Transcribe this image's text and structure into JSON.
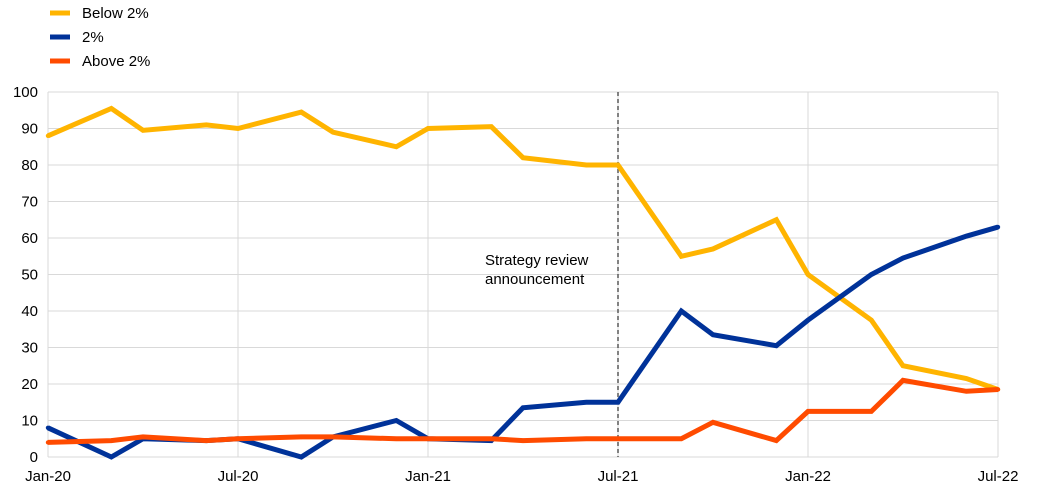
{
  "chart_data": {
    "type": "line",
    "title": "",
    "xlabel": "",
    "ylabel": "",
    "ylim": [
      0,
      100
    ],
    "yticks": [
      0,
      10,
      20,
      30,
      40,
      50,
      60,
      70,
      80,
      90,
      100
    ],
    "xlim": [
      "2020-01",
      "2022-07"
    ],
    "xticks": [
      {
        "label": "Jan-20",
        "x": "2020-01"
      },
      {
        "label": "Jul-20",
        "x": "2020-07"
      },
      {
        "label": "Jan-21",
        "x": "2021-01"
      },
      {
        "label": "Jul-21",
        "x": "2021-07"
      },
      {
        "label": "Jan-22",
        "x": "2022-01"
      },
      {
        "label": "Jul-22",
        "x": "2022-07"
      }
    ],
    "grid": true,
    "legend": "top-left",
    "series": [
      {
        "name": "Below 2%",
        "color": "#FFB400",
        "points": [
          {
            "x": "2020-01",
            "y": 88
          },
          {
            "x": "2020-03",
            "y": 95.5
          },
          {
            "x": "2020-04",
            "y": 89.5
          },
          {
            "x": "2020-06",
            "y": 91
          },
          {
            "x": "2020-07",
            "y": 90
          },
          {
            "x": "2020-09",
            "y": 94.5
          },
          {
            "x": "2020-10",
            "y": 89
          },
          {
            "x": "2020-12",
            "y": 85
          },
          {
            "x": "2021-01",
            "y": 90
          },
          {
            "x": "2021-03",
            "y": 90.5
          },
          {
            "x": "2021-04",
            "y": 82
          },
          {
            "x": "2021-06",
            "y": 80
          },
          {
            "x": "2021-07",
            "y": 80
          },
          {
            "x": "2021-09",
            "y": 55
          },
          {
            "x": "2021-10",
            "y": 57
          },
          {
            "x": "2021-12",
            "y": 65
          },
          {
            "x": "2022-01",
            "y": 50
          },
          {
            "x": "2022-03",
            "y": 37.5
          },
          {
            "x": "2022-04",
            "y": 25
          },
          {
            "x": "2022-06",
            "y": 21.5
          },
          {
            "x": "2022-07",
            "y": 18.5
          }
        ]
      },
      {
        "name": "2%",
        "color": "#003299",
        "points": [
          {
            "x": "2020-01",
            "y": 8
          },
          {
            "x": "2020-03",
            "y": 0
          },
          {
            "x": "2020-04",
            "y": 5
          },
          {
            "x": "2020-06",
            "y": 4.5
          },
          {
            "x": "2020-07",
            "y": 5
          },
          {
            "x": "2020-09",
            "y": 0
          },
          {
            "x": "2020-10",
            "y": 5.5
          },
          {
            "x": "2020-12",
            "y": 10
          },
          {
            "x": "2021-01",
            "y": 5
          },
          {
            "x": "2021-03",
            "y": 4.5
          },
          {
            "x": "2021-04",
            "y": 13.5
          },
          {
            "x": "2021-06",
            "y": 15
          },
          {
            "x": "2021-07",
            "y": 15
          },
          {
            "x": "2021-09",
            "y": 40
          },
          {
            "x": "2021-10",
            "y": 33.5
          },
          {
            "x": "2021-12",
            "y": 30.5
          },
          {
            "x": "2022-01",
            "y": 37.5
          },
          {
            "x": "2022-03",
            "y": 50
          },
          {
            "x": "2022-04",
            "y": 54.5
          },
          {
            "x": "2022-06",
            "y": 60.5
          },
          {
            "x": "2022-07",
            "y": 63
          }
        ]
      },
      {
        "name": "Above 2%",
        "color": "#FF4B00",
        "points": [
          {
            "x": "2020-01",
            "y": 4
          },
          {
            "x": "2020-03",
            "y": 4.5
          },
          {
            "x": "2020-04",
            "y": 5.5
          },
          {
            "x": "2020-06",
            "y": 4.5
          },
          {
            "x": "2020-07",
            "y": 5
          },
          {
            "x": "2020-09",
            "y": 5.5
          },
          {
            "x": "2020-10",
            "y": 5.5
          },
          {
            "x": "2020-12",
            "y": 5
          },
          {
            "x": "2021-01",
            "y": 5
          },
          {
            "x": "2021-03",
            "y": 5
          },
          {
            "x": "2021-04",
            "y": 4.5
          },
          {
            "x": "2021-06",
            "y": 5
          },
          {
            "x": "2021-07",
            "y": 5
          },
          {
            "x": "2021-09",
            "y": 5
          },
          {
            "x": "2021-10",
            "y": 9.5
          },
          {
            "x": "2021-12",
            "y": 4.5
          },
          {
            "x": "2022-01",
            "y": 12.5
          },
          {
            "x": "2022-03",
            "y": 12.5
          },
          {
            "x": "2022-04",
            "y": 21
          },
          {
            "x": "2022-06",
            "y": 18
          },
          {
            "x": "2022-07",
            "y": 18.5
          }
        ]
      }
    ],
    "annotations": [
      {
        "text_lines": [
          "Strategy review",
          "announcement"
        ],
        "x": "2021-07",
        "style": "dashed-vertical-line",
        "color": "#595959"
      }
    ]
  }
}
